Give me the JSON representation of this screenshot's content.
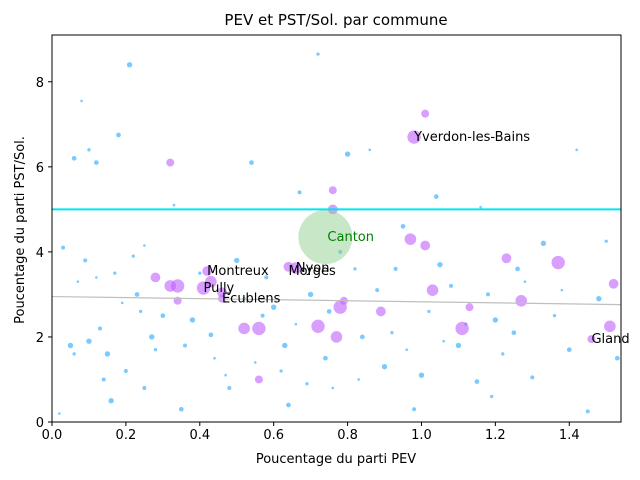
{
  "chart_data": {
    "type": "scatter",
    "title": "PEV et PST/Sol. par commune",
    "xlabel": "Poucentage du parti PEV",
    "ylabel": "Poucentage du parti PST/Sol.",
    "xlim": [
      0,
      1.54
    ],
    "ylim": [
      0,
      9.1
    ],
    "xticks": [
      0.0,
      0.2,
      0.4,
      0.6,
      0.8,
      1.0,
      1.2,
      1.4
    ],
    "xtick_labels": [
      "0.0",
      "0.2",
      "0.4",
      "0.6",
      "0.8",
      "1.0",
      "1.2",
      "1.4"
    ],
    "yticks": [
      0,
      2,
      4,
      6,
      8
    ],
    "ytick_labels": [
      "0",
      "2",
      "4",
      "6",
      "8"
    ],
    "grid": false,
    "colors": {
      "small_points": "#4db8ff",
      "large_points": "#bf5fff",
      "canton": "#8fcf8f",
      "hline": "#00e5ee",
      "trend": "#bfbfbf",
      "canton_label": "#008000"
    },
    "hline": {
      "y": 5.0
    },
    "trend_line": {
      "x": [
        0,
        1.54
      ],
      "y": [
        2.95,
        2.76
      ]
    },
    "canton": {
      "x": 0.74,
      "y": 4.35,
      "label": "Canton"
    },
    "large_points": [
      {
        "x": 0.32,
        "y": 6.1
      },
      {
        "x": 0.28,
        "y": 3.4
      },
      {
        "x": 0.32,
        "y": 3.2
      },
      {
        "x": 0.34,
        "y": 3.2
      },
      {
        "x": 0.34,
        "y": 2.85
      },
      {
        "x": 0.42,
        "y": 3.55
      },
      {
        "x": 0.43,
        "y": 3.3
      },
      {
        "x": 0.41,
        "y": 3.15
      },
      {
        "x": 0.46,
        "y": 2.9
      },
      {
        "x": 0.46,
        "y": 3.05
      },
      {
        "x": 0.52,
        "y": 2.2
      },
      {
        "x": 0.56,
        "y": 2.2
      },
      {
        "x": 0.56,
        "y": 1.0
      },
      {
        "x": 0.64,
        "y": 3.65
      },
      {
        "x": 0.66,
        "y": 3.62
      },
      {
        "x": 0.72,
        "y": 2.25
      },
      {
        "x": 0.76,
        "y": 5.45
      },
      {
        "x": 0.76,
        "y": 5.0
      },
      {
        "x": 0.77,
        "y": 2.0
      },
      {
        "x": 0.78,
        "y": 2.7
      },
      {
        "x": 0.79,
        "y": 2.85
      },
      {
        "x": 0.89,
        "y": 2.6
      },
      {
        "x": 0.97,
        "y": 4.3
      },
      {
        "x": 0.98,
        "y": 6.7
      },
      {
        "x": 1.01,
        "y": 7.25
      },
      {
        "x": 1.01,
        "y": 4.15
      },
      {
        "x": 1.03,
        "y": 3.1
      },
      {
        "x": 1.11,
        "y": 2.2
      },
      {
        "x": 1.13,
        "y": 2.7
      },
      {
        "x": 1.23,
        "y": 3.85
      },
      {
        "x": 1.27,
        "y": 2.85
      },
      {
        "x": 1.37,
        "y": 3.75
      },
      {
        "x": 1.46,
        "y": 1.95
      },
      {
        "x": 1.52,
        "y": 3.25
      },
      {
        "x": 1.51,
        "y": 2.25
      }
    ],
    "small_points": [
      {
        "x": 0.02,
        "y": 0.2
      },
      {
        "x": 0.03,
        "y": 4.1
      },
      {
        "x": 0.05,
        "y": 1.8
      },
      {
        "x": 0.06,
        "y": 1.6
      },
      {
        "x": 0.06,
        "y": 6.2
      },
      {
        "x": 0.08,
        "y": 7.55
      },
      {
        "x": 0.09,
        "y": 3.8
      },
      {
        "x": 0.1,
        "y": 1.9
      },
      {
        "x": 0.1,
        "y": 6.4
      },
      {
        "x": 0.12,
        "y": 6.1
      },
      {
        "x": 0.12,
        "y": 3.4
      },
      {
        "x": 0.14,
        "y": 1.0
      },
      {
        "x": 0.15,
        "y": 1.6
      },
      {
        "x": 0.17,
        "y": 3.5
      },
      {
        "x": 0.18,
        "y": 6.75
      },
      {
        "x": 0.19,
        "y": 2.8
      },
      {
        "x": 0.2,
        "y": 1.2
      },
      {
        "x": 0.21,
        "y": 8.4
      },
      {
        "x": 0.22,
        "y": 3.9
      },
      {
        "x": 0.23,
        "y": 3.0
      },
      {
        "x": 0.25,
        "y": 4.15
      },
      {
        "x": 0.25,
        "y": 0.8
      },
      {
        "x": 0.27,
        "y": 2.0
      },
      {
        "x": 0.28,
        "y": 1.7
      },
      {
        "x": 0.3,
        "y": 2.5
      },
      {
        "x": 0.33,
        "y": 5.1
      },
      {
        "x": 0.36,
        "y": 1.8
      },
      {
        "x": 0.38,
        "y": 2.4
      },
      {
        "x": 0.4,
        "y": 3.5
      },
      {
        "x": 0.43,
        "y": 2.05
      },
      {
        "x": 0.44,
        "y": 1.5
      },
      {
        "x": 0.48,
        "y": 0.8
      },
      {
        "x": 0.5,
        "y": 3.8
      },
      {
        "x": 0.52,
        "y": 2.9
      },
      {
        "x": 0.54,
        "y": 6.1
      },
      {
        "x": 0.55,
        "y": 1.4
      },
      {
        "x": 0.58,
        "y": 3.4
      },
      {
        "x": 0.6,
        "y": 2.7
      },
      {
        "x": 0.62,
        "y": 1.2
      },
      {
        "x": 0.64,
        "y": 0.4
      },
      {
        "x": 0.66,
        "y": 2.3
      },
      {
        "x": 0.67,
        "y": 5.4
      },
      {
        "x": 0.7,
        "y": 3.0
      },
      {
        "x": 0.72,
        "y": 8.65
      },
      {
        "x": 0.74,
        "y": 1.5
      },
      {
        "x": 0.76,
        "y": 0.8
      },
      {
        "x": 0.78,
        "y": 4.0
      },
      {
        "x": 0.8,
        "y": 6.3
      },
      {
        "x": 0.82,
        "y": 3.6
      },
      {
        "x": 0.84,
        "y": 2.0
      },
      {
        "x": 0.86,
        "y": 6.4
      },
      {
        "x": 0.88,
        "y": 3.1
      },
      {
        "x": 0.9,
        "y": 1.3
      },
      {
        "x": 0.92,
        "y": 2.1
      },
      {
        "x": 0.95,
        "y": 4.6
      },
      {
        "x": 0.96,
        "y": 1.7
      },
      {
        "x": 0.98,
        "y": 0.3
      },
      {
        "x": 1.0,
        "y": 1.1
      },
      {
        "x": 1.02,
        "y": 2.6
      },
      {
        "x": 1.04,
        "y": 5.3
      },
      {
        "x": 1.06,
        "y": 1.9
      },
      {
        "x": 1.08,
        "y": 3.2
      },
      {
        "x": 1.1,
        "y": 1.8
      },
      {
        "x": 1.12,
        "y": 2.3
      },
      {
        "x": 1.15,
        "y": 0.95
      },
      {
        "x": 1.16,
        "y": 5.05
      },
      {
        "x": 1.18,
        "y": 3.0
      },
      {
        "x": 1.2,
        "y": 2.4
      },
      {
        "x": 1.22,
        "y": 1.6
      },
      {
        "x": 1.25,
        "y": 2.1
      },
      {
        "x": 1.28,
        "y": 3.3
      },
      {
        "x": 1.3,
        "y": 1.05
      },
      {
        "x": 1.33,
        "y": 4.2
      },
      {
        "x": 1.36,
        "y": 2.5
      },
      {
        "x": 1.4,
        "y": 1.7
      },
      {
        "x": 1.42,
        "y": 6.4
      },
      {
        "x": 1.45,
        "y": 0.25
      },
      {
        "x": 1.48,
        "y": 2.9
      },
      {
        "x": 1.5,
        "y": 4.25
      },
      {
        "x": 1.53,
        "y": 1.5
      },
      {
        "x": 0.07,
        "y": 3.3
      },
      {
        "x": 0.13,
        "y": 2.2
      },
      {
        "x": 0.16,
        "y": 0.5
      },
      {
        "x": 0.24,
        "y": 2.6
      },
      {
        "x": 0.35,
        "y": 0.3
      },
      {
        "x": 0.47,
        "y": 1.1
      },
      {
        "x": 0.57,
        "y": 2.5
      },
      {
        "x": 0.63,
        "y": 1.8
      },
      {
        "x": 0.69,
        "y": 0.9
      },
      {
        "x": 0.75,
        "y": 2.6
      },
      {
        "x": 0.83,
        "y": 1.0
      },
      {
        "x": 0.93,
        "y": 3.6
      },
      {
        "x": 1.05,
        "y": 3.7
      },
      {
        "x": 1.19,
        "y": 0.6
      },
      {
        "x": 1.26,
        "y": 3.6
      },
      {
        "x": 1.38,
        "y": 3.1
      }
    ],
    "annotations": [
      {
        "text": "Yverdon-les-Bains",
        "x": 0.98,
        "y": 6.7
      },
      {
        "text": "Nyon",
        "x": 0.66,
        "y": 3.62
      },
      {
        "text": "Morges",
        "x": 0.64,
        "y": 3.55
      },
      {
        "text": "Montreux",
        "x": 0.42,
        "y": 3.55
      },
      {
        "text": "Pully",
        "x": 0.41,
        "y": 3.15
      },
      {
        "text": "Ecublens",
        "x": 0.46,
        "y": 2.9
      },
      {
        "text": "Gland",
        "x": 1.46,
        "y": 1.95
      }
    ]
  }
}
